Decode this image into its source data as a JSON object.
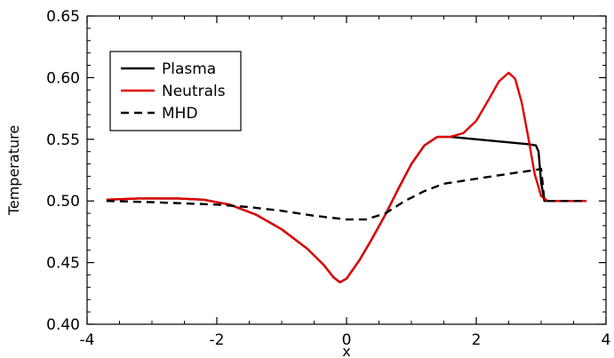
{
  "chart_data": {
    "type": "line",
    "title": "",
    "xlabel": "x",
    "ylabel": "Temperature",
    "xlim": [
      -4,
      4
    ],
    "ylim": [
      0.4,
      0.65
    ],
    "x_ticks": [
      "-4",
      "-2",
      "0",
      "2",
      "4"
    ],
    "y_ticks": [
      "0.40",
      "0.45",
      "0.50",
      "0.55",
      "0.60",
      "0.65"
    ],
    "grid": false,
    "legend_position": "top-left",
    "series": [
      {
        "name": "Plasma",
        "color": "#000000",
        "dash": "solid",
        "x": [
          -3.7,
          -3.2,
          -2.6,
          -2.2,
          -1.8,
          -1.4,
          -1.0,
          -0.6,
          -0.35,
          -0.2,
          -0.1,
          0.0,
          0.2,
          0.4,
          0.6,
          0.8,
          1.0,
          1.2,
          1.4,
          1.6,
          2.0,
          2.4,
          2.8,
          2.92,
          2.96,
          3.0,
          3.05,
          3.2,
          3.7
        ],
        "values": [
          0.501,
          0.502,
          0.502,
          0.501,
          0.497,
          0.489,
          0.477,
          0.461,
          0.448,
          0.438,
          0.434,
          0.437,
          0.452,
          0.47,
          0.489,
          0.51,
          0.53,
          0.545,
          0.552,
          0.552,
          0.55,
          0.548,
          0.546,
          0.545,
          0.54,
          0.515,
          0.5,
          0.5,
          0.5
        ]
      },
      {
        "name": "Neutrals",
        "color": "#e00000",
        "dash": "solid",
        "x": [
          -3.7,
          -3.2,
          -2.6,
          -2.2,
          -1.8,
          -1.4,
          -1.0,
          -0.6,
          -0.35,
          -0.2,
          -0.1,
          0.0,
          0.2,
          0.4,
          0.6,
          0.8,
          1.0,
          1.2,
          1.4,
          1.6,
          1.8,
          2.0,
          2.2,
          2.35,
          2.5,
          2.6,
          2.7,
          2.8,
          2.9,
          3.0,
          3.1,
          3.3,
          3.7
        ],
        "values": [
          0.501,
          0.502,
          0.502,
          0.501,
          0.497,
          0.489,
          0.477,
          0.461,
          0.448,
          0.438,
          0.434,
          0.437,
          0.452,
          0.47,
          0.489,
          0.51,
          0.53,
          0.545,
          0.552,
          0.552,
          0.555,
          0.565,
          0.583,
          0.597,
          0.604,
          0.599,
          0.58,
          0.552,
          0.522,
          0.504,
          0.5,
          0.5,
          0.5
        ]
      },
      {
        "name": "MHD",
        "color": "#000000",
        "dash": "dashed",
        "x": [
          -3.7,
          -3.0,
          -2.5,
          -2.0,
          -1.5,
          -1.0,
          -0.5,
          0.0,
          0.3,
          0.6,
          0.9,
          1.2,
          1.5,
          2.0,
          2.5,
          2.9,
          3.0,
          3.05,
          3.2,
          3.7
        ],
        "values": [
          0.5,
          0.499,
          0.498,
          0.497,
          0.495,
          0.492,
          0.488,
          0.485,
          0.485,
          0.49,
          0.5,
          0.508,
          0.514,
          0.518,
          0.522,
          0.525,
          0.526,
          0.5,
          0.5,
          0.5
        ]
      }
    ]
  }
}
